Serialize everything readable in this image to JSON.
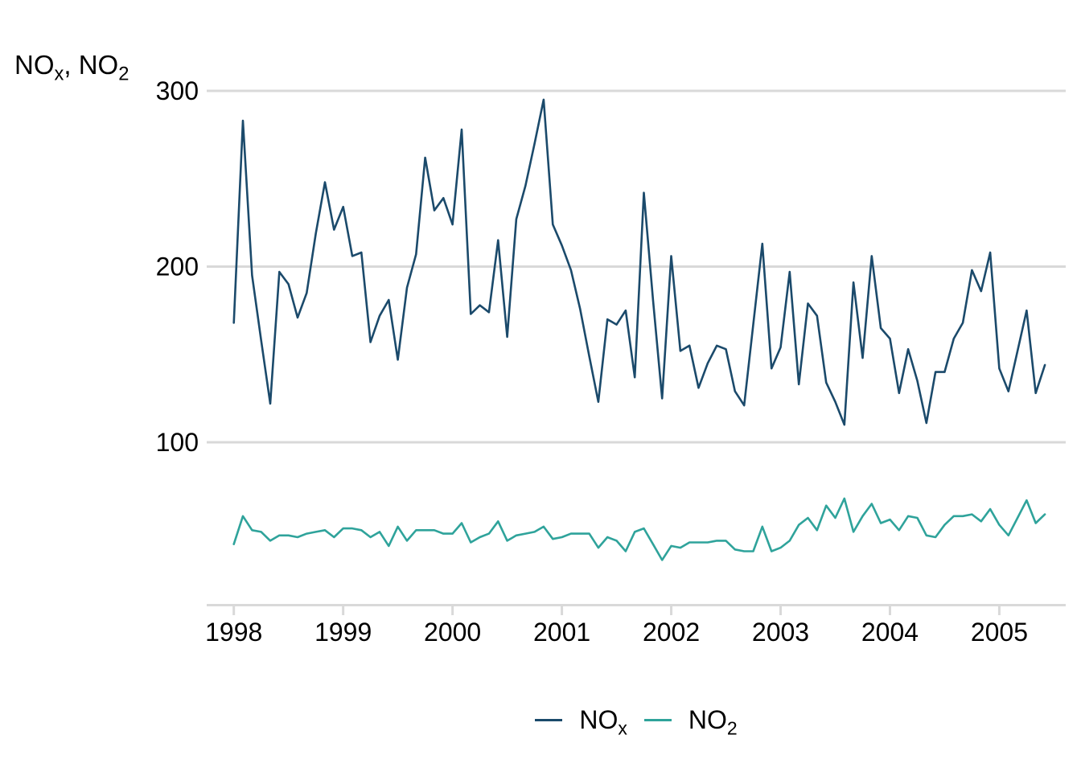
{
  "chart_data": {
    "type": "line",
    "title": "",
    "x_unit": "month",
    "x_start": "1998-01",
    "x_end": "2005-06",
    "grid": "horizontal-only",
    "legend_position": "bottom-center",
    "colors": {
      "grid": "#d9d9d9",
      "text": "#000000",
      "background": "#ffffff"
    },
    "axis_title": {
      "base1": "NO",
      "sub1": "x",
      "separator": ", ",
      "base2": "NO",
      "sub2": "2"
    },
    "x_tick_labels": [
      "1998",
      "1999",
      "2000",
      "2001",
      "2002",
      "2003",
      "2004",
      "2005"
    ],
    "y_tick_labels": [
      "100",
      "200",
      "300"
    ],
    "series": [
      {
        "name": {
          "base": "NO",
          "sub": "x"
        },
        "color": "#1b4a6b",
        "values": [
          168,
          283,
          195,
          158,
          122,
          197,
          190,
          171,
          185,
          219,
          248,
          221,
          234,
          206,
          208,
          157,
          172,
          181,
          147,
          188,
          207,
          262,
          232,
          239,
          224,
          278,
          173,
          178,
          174,
          215,
          160,
          227,
          246,
          270,
          295,
          224,
          212,
          198,
          176,
          149,
          123,
          170,
          167,
          175,
          137,
          242,
          181,
          125,
          206,
          152,
          155,
          131,
          145,
          155,
          153,
          129,
          121,
          167,
          213,
          142,
          154,
          197,
          133,
          179,
          172,
          134,
          123,
          110,
          191,
          148,
          206,
          165,
          159,
          128,
          153,
          135,
          111,
          140,
          140,
          159,
          168,
          198,
          186,
          208,
          142,
          129,
          152,
          175,
          128,
          144
        ]
      },
      {
        "name": {
          "base": "NO",
          "sub": "2"
        },
        "color": "#2fa39b",
        "values": [
          42,
          58,
          50,
          49,
          44,
          47,
          47,
          46,
          48,
          49,
          50,
          46,
          51,
          51,
          50,
          46,
          49,
          41,
          52,
          44,
          50,
          50,
          50,
          48,
          48,
          54,
          43,
          46,
          48,
          55,
          44,
          47,
          48,
          49,
          52,
          45,
          46,
          48,
          48,
          48,
          40,
          46,
          44,
          38,
          49,
          51,
          42,
          33,
          41,
          40,
          43,
          43,
          43,
          44,
          44,
          39,
          38,
          38,
          52,
          38,
          40,
          44,
          53,
          57,
          50,
          64,
          57,
          68,
          49,
          58,
          65,
          54,
          56,
          50,
          58,
          57,
          47,
          46,
          53,
          58,
          58,
          59,
          55,
          62,
          53,
          47,
          57,
          67,
          54,
          59
        ]
      }
    ]
  }
}
